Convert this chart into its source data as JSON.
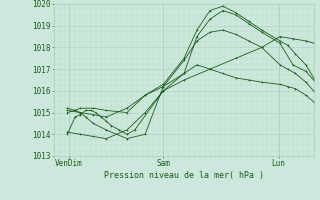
{
  "xlabel": "Pression niveau de la mer( hPa )",
  "ylim": [
    1013,
    1020
  ],
  "yticks": [
    1013,
    1014,
    1015,
    1016,
    1017,
    1018,
    1019,
    1020
  ],
  "bg_color": "#cce8dc",
  "grid_color_major": "#aacfbc",
  "grid_color_minor": "#bcdccc",
  "line_color": "#1a5c1a",
  "tick_label_color": "#1a5c1a",
  "xtick_labels": [
    "VenDim",
    "Sam",
    "Lun"
  ],
  "xtick_positions": [
    0.055,
    0.42,
    0.865
  ],
  "series": [
    {
      "x": [
        0.05,
        0.08,
        0.1,
        0.12,
        0.14,
        0.16,
        0.18,
        0.2,
        0.22,
        0.25,
        0.28,
        0.31,
        0.42,
        0.5,
        0.6,
        0.7,
        0.8,
        0.87,
        0.92,
        0.97,
        1.0
      ],
      "y": [
        1014.0,
        1014.8,
        1014.9,
        1015.1,
        1015.1,
        1015.0,
        1014.8,
        1014.6,
        1014.4,
        1014.2,
        1014.0,
        1014.2,
        1016.0,
        1016.5,
        1017.0,
        1017.5,
        1018.0,
        1018.5,
        1018.4,
        1018.3,
        1018.2
      ]
    },
    {
      "x": [
        0.05,
        0.08,
        0.1,
        0.12,
        0.15,
        0.2,
        0.28,
        0.35,
        0.42,
        0.5,
        0.55,
        0.6,
        0.65,
        0.7,
        0.75,
        0.8,
        0.87,
        0.92,
        0.97,
        1.0
      ],
      "y": [
        1015.2,
        1015.1,
        1015.0,
        1014.8,
        1014.5,
        1014.2,
        1013.8,
        1014.0,
        1016.2,
        1016.8,
        1018.5,
        1019.3,
        1019.7,
        1019.5,
        1019.1,
        1018.7,
        1018.2,
        1017.2,
        1016.9,
        1016.5
      ]
    },
    {
      "x": [
        0.05,
        0.08,
        0.1,
        0.15,
        0.2,
        0.28,
        0.35,
        0.42,
        0.5,
        0.55,
        0.6,
        0.65,
        0.7,
        0.75,
        0.8,
        0.87,
        0.9,
        0.93,
        0.97,
        1.0
      ],
      "y": [
        1015.0,
        1015.1,
        1015.2,
        1015.2,
        1015.1,
        1015.0,
        1015.8,
        1016.3,
        1017.5,
        1018.8,
        1019.7,
        1019.9,
        1019.6,
        1019.2,
        1018.8,
        1018.3,
        1018.1,
        1017.7,
        1017.2,
        1016.6
      ]
    },
    {
      "x": [
        0.05,
        0.1,
        0.15,
        0.2,
        0.28,
        0.35,
        0.42,
        0.5,
        0.55,
        0.6,
        0.65,
        0.7,
        0.75,
        0.8,
        0.87,
        0.9,
        0.93,
        0.97,
        1.0
      ],
      "y": [
        1015.1,
        1015.0,
        1014.9,
        1014.8,
        1015.2,
        1015.8,
        1016.2,
        1017.4,
        1018.3,
        1018.7,
        1018.8,
        1018.6,
        1018.3,
        1018.0,
        1017.2,
        1017.0,
        1016.8,
        1016.4,
        1016.0
      ]
    },
    {
      "x": [
        0.05,
        0.1,
        0.15,
        0.2,
        0.28,
        0.35,
        0.42,
        0.5,
        0.55,
        0.6,
        0.65,
        0.7,
        0.75,
        0.8,
        0.87,
        0.9,
        0.93,
        0.97,
        1.0
      ],
      "y": [
        1014.1,
        1014.0,
        1013.9,
        1013.8,
        1014.2,
        1015.0,
        1016.0,
        1016.8,
        1017.2,
        1017.0,
        1016.8,
        1016.6,
        1016.5,
        1016.4,
        1016.3,
        1016.2,
        1016.1,
        1015.8,
        1015.5
      ]
    }
  ]
}
